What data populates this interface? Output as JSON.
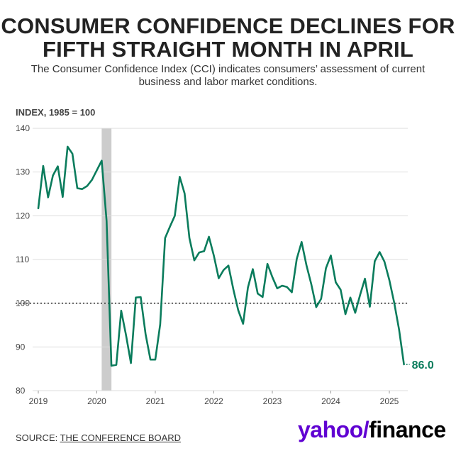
{
  "header": {
    "title": "CONSUMER CONFIDENCE DECLINES FOR FIFTH STRAIGHT MONTH IN APRIL",
    "subtitle": "The Consumer Confidence Index (CCI) indicates consumers’ assessment of current business and labor market conditions."
  },
  "footer": {
    "source_prefix": "SOURCE: ",
    "source_name": "THE CONFERENCE BOARD",
    "logo_main": "yahoo/",
    "logo_sub": "finance"
  },
  "colors": {
    "line": "#0a7c5c",
    "grid": "#dddddd",
    "reference_line": "#333333",
    "recession_band": "#cccccc",
    "text": "#444444",
    "logo_purple": "#6001d2"
  },
  "chart_data": {
    "type": "line",
    "title": "CONSUMER CONFIDENCE DECLINES FOR FIFTH STRAIGHT MONTH IN APRIL",
    "ylabel": "INDEX, 1985 = 100",
    "xlabel": "",
    "ylim": [
      80,
      140
    ],
    "yticks": [
      80,
      90,
      100,
      110,
      120,
      130,
      140
    ],
    "xticks": [
      "2019",
      "2020",
      "2021",
      "2022",
      "2023",
      "2024",
      "2025"
    ],
    "x_start": "2019-01",
    "reference_line": 100,
    "shaded_period": [
      "2020-02",
      "2020-04"
    ],
    "grid": true,
    "end_label": "86.0",
    "series": [
      {
        "values": [
          121.7,
          131.4,
          124.2,
          129.2,
          131.3,
          124.3,
          135.8,
          134.2,
          126.3,
          126.1,
          126.8,
          128.2,
          130.4,
          132.6,
          118.8,
          85.7,
          85.9,
          98.3,
          92.6,
          86.3,
          101.3,
          101.4,
          92.9,
          87.1,
          87.1,
          95.2,
          114.9,
          117.5,
          120.0,
          128.9,
          125.1,
          114.9,
          109.8,
          111.6,
          111.9,
          115.2,
          110.9,
          105.7,
          107.6,
          108.6,
          103.2,
          98.4,
          95.3,
          103.6,
          107.8,
          102.2,
          101.4,
          109.0,
          106.0,
          103.4,
          104.0,
          103.7,
          102.5,
          110.1,
          114.0,
          108.7,
          104.3,
          99.1,
          101.0,
          108.0,
          110.9,
          104.8,
          103.1,
          97.5,
          101.3,
          97.8,
          101.9,
          105.6,
          99.2,
          109.6,
          111.7,
          109.5,
          105.3,
          100.1,
          93.9,
          86.0
        ]
      }
    ]
  }
}
